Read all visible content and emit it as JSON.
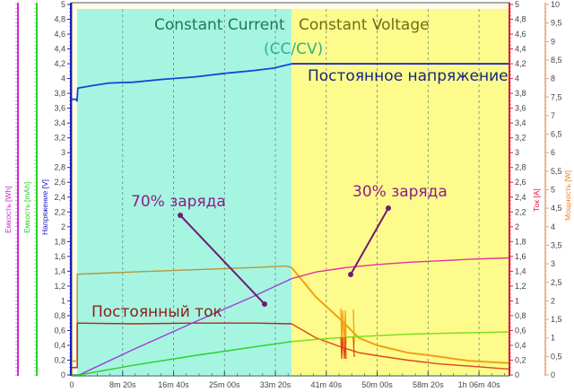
{
  "chart_data": {
    "type": "line",
    "title": "",
    "phases": [
      {
        "label": "Constant Current",
        "color": "#a6f5e1",
        "x_start_min": 0.9,
        "x_end_min": 36.0
      },
      {
        "label": "Constant Voltage",
        "color": "#fdfb8c",
        "x_start_min": 36.0,
        "x_end_min": 71.5
      }
    ],
    "phase_caption": "(CC/CV)",
    "x": {
      "label": "",
      "unit": "time",
      "range_min": [
        0,
        71.5
      ],
      "tick_labels": [
        "0",
        "8m 20s",
        "16m 40s",
        "25m 00s",
        "33m 20s",
        "41m 40s",
        "50m 00s",
        "58m 20s",
        "1h 06m 40s"
      ],
      "tick_minutes": [
        0,
        8.333,
        16.667,
        25,
        33.333,
        41.667,
        50,
        58.333,
        66.667
      ]
    },
    "axes": {
      "left": [
        {
          "id": "wh",
          "label": "Емкость [Wh]",
          "color": "#d22bd2"
        },
        {
          "id": "mah",
          "label": "Емкость [mAh]",
          "color": "#2bd22b"
        },
        {
          "id": "v",
          "label": "Напряжение [V]",
          "color": "#1a1ac8",
          "range": [
            0,
            5
          ],
          "ticks": [
            "0",
            "0,2",
            "0,4",
            "0,6",
            "0,8",
            "1",
            "1,2",
            "1,4",
            "1,6",
            "1,8",
            "2",
            "2,2",
            "2,4",
            "2,6",
            "2,8",
            "3",
            "3,2",
            "3,4",
            "3,6",
            "3,8",
            "4",
            "4,2",
            "4,4",
            "4,6",
            "4,8",
            "5"
          ]
        }
      ],
      "right": [
        {
          "id": "a",
          "label": "Ток [A]",
          "color": "#e0143c",
          "range": [
            0,
            5
          ],
          "ticks": [
            "0",
            "0,2",
            "0,4",
            "0,6",
            "0,8",
            "1",
            "1,2",
            "1,4",
            "1,6",
            "1,8",
            "2",
            "2,2",
            "2,4",
            "2,6",
            "2,8",
            "3",
            "3,2",
            "3,4",
            "3,6",
            "3,8",
            "4",
            "4,2",
            "4,4",
            "4,6",
            "4,8",
            "5"
          ]
        },
        {
          "id": "w",
          "label": "Мощность [W]",
          "color": "#f0821e",
          "range": [
            0,
            10
          ],
          "ticks": [
            "0",
            "0,5",
            "1",
            "1,5",
            "2",
            "2,5",
            "3",
            "3,5",
            "4",
            "4,5",
            "5",
            "5,5",
            "6",
            "6,5",
            "7",
            "7,5",
            "8",
            "8,5",
            "9",
            "9,5",
            "10"
          ]
        }
      ]
    },
    "series": [
      {
        "name": "Напряжение [V]",
        "color": "#1446d2",
        "axis": "v",
        "x_min": [
          0,
          0.8,
          0.85,
          1.0,
          3,
          6,
          10,
          15,
          20,
          25,
          30,
          33,
          36,
          40,
          50,
          60,
          71.5
        ],
        "values": [
          3.72,
          3.72,
          3.69,
          3.87,
          3.9,
          3.94,
          3.95,
          3.99,
          4.02,
          4.07,
          4.11,
          4.14,
          4.2,
          4.2,
          4.2,
          4.2,
          4.2
        ]
      },
      {
        "name": "Мощность [W] (CC)",
        "color": "#b4963c",
        "axis": "w",
        "x_min": [
          0,
          0.9,
          0.9,
          10,
          20,
          30,
          35,
          36,
          40,
          44,
          47,
          50,
          55,
          60,
          65,
          71.5
        ],
        "values": [
          0.37,
          0.37,
          2.72,
          2.78,
          2.84,
          2.9,
          2.94,
          2.9,
          2.1,
          1.5,
          1.0,
          0.8,
          0.6,
          0.5,
          0.38,
          0.32
        ]
      },
      {
        "name": "Ток [A]",
        "color": "#b42814",
        "axis": "a",
        "x_min": [
          0,
          0.9,
          0.9,
          10,
          20,
          30,
          36,
          40,
          44,
          47,
          50,
          55,
          60,
          65,
          71.5
        ],
        "values": [
          0.1,
          0.1,
          0.7,
          0.69,
          0.7,
          0.7,
          0.69,
          0.5,
          0.38,
          0.3,
          0.26,
          0.2,
          0.15,
          0.12,
          0.08
        ]
      },
      {
        "name": "Емкость [Wh]",
        "color": "#a03cdc",
        "axis": "v",
        "x_min": [
          0,
          1.2,
          10,
          20,
          30,
          36,
          40,
          45,
          50,
          55,
          60,
          65,
          71.5
        ],
        "values": [
          0,
          0.0,
          0.34,
          0.71,
          1.07,
          1.3,
          1.39,
          1.45,
          1.49,
          1.52,
          1.54,
          1.56,
          1.58
        ]
      },
      {
        "name": "Емкость [mAh]",
        "color": "#28d228",
        "axis": "v",
        "x_min": [
          0,
          1.2,
          10,
          20,
          30,
          36,
          40,
          45,
          50,
          55,
          60,
          65,
          71.5
        ],
        "values": [
          0,
          0.0,
          0.13,
          0.26,
          0.38,
          0.45,
          0.48,
          0.51,
          0.53,
          0.55,
          0.56,
          0.57,
          0.58
        ]
      }
    ],
    "annotations": [
      {
        "text": "Постоянное напряжение",
        "color": "#14287d"
      },
      {
        "text": "Постоянный ток",
        "color": "#8c1e14"
      },
      {
        "text": "70% заряда",
        "color": "#8c1e8c",
        "point_min": 32.5,
        "point_v": 0.96
      },
      {
        "text": "30% заряда",
        "color": "#8c1e8c",
        "point_min": 46.5,
        "point_v": 1.36
      }
    ],
    "grid": {
      "vertical_dashed": true,
      "horizontal": false
    },
    "legend": "none"
  }
}
